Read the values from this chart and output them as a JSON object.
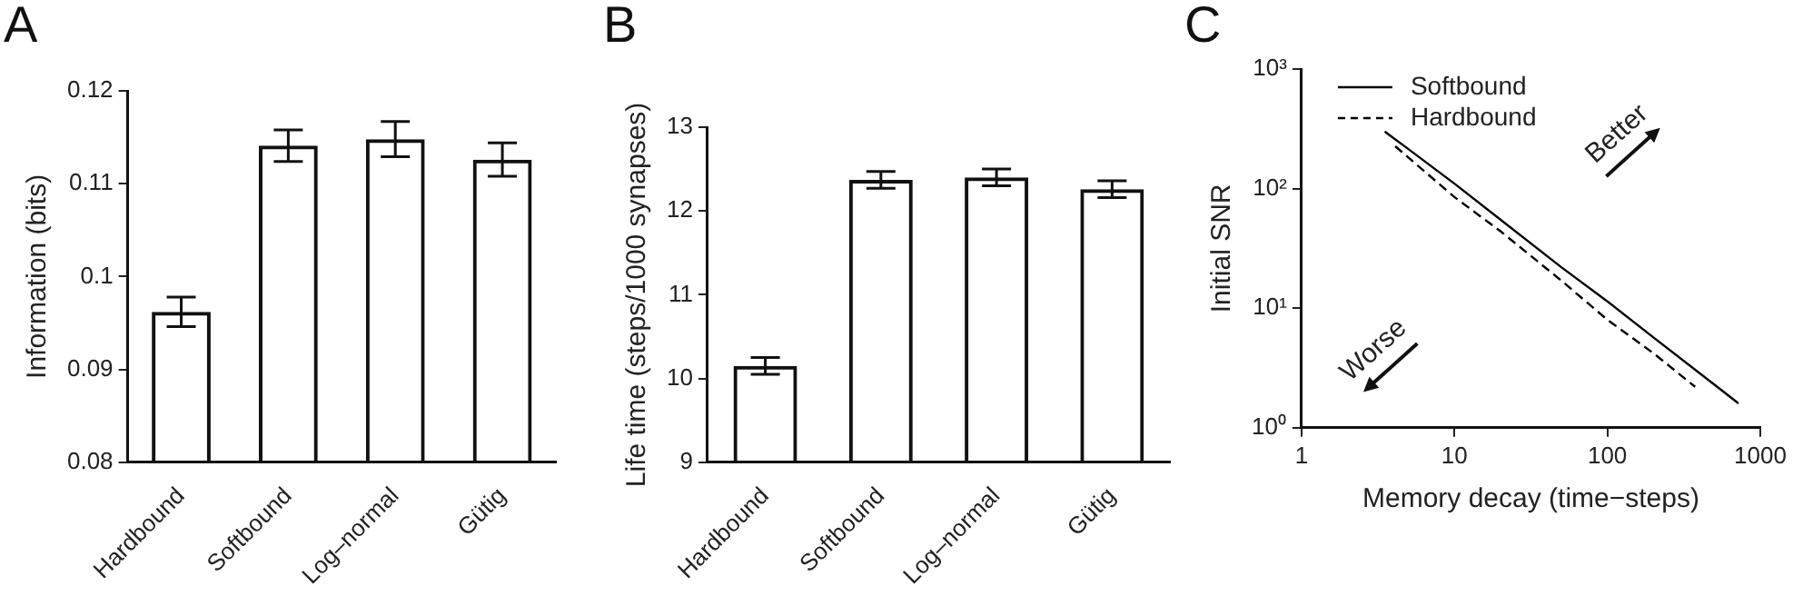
{
  "chart_data": [
    {
      "type": "bar",
      "title": "A",
      "ylabel": "Information (bits)",
      "categories": [
        "Hardbound",
        "Softbound",
        "Log–normal",
        "Gütig"
      ],
      "values": [
        0.0962,
        0.1141,
        0.1148,
        0.1126
      ],
      "errors": [
        0.0016,
        0.0017,
        0.0019,
        0.0018
      ],
      "color": "#111111",
      "ylim": [
        0.08,
        0.12
      ],
      "yticks": [
        0.08,
        0.09,
        0.1,
        0.11,
        0.12
      ]
    },
    {
      "type": "bar",
      "title": "B",
      "ylabel": "Life time (steps/1000 synapses)",
      "categories": [
        "Hardbound",
        "Softbound",
        "Log–normal",
        "Gütig"
      ],
      "values": [
        10.15,
        12.37,
        12.4,
        12.26
      ],
      "errors": [
        0.1,
        0.1,
        0.1,
        0.1
      ],
      "color": "#111111",
      "ylim": [
        9,
        13
      ],
      "yticks": [
        9,
        10,
        11,
        12,
        13
      ]
    },
    {
      "type": "line",
      "title": "C",
      "xlabel": "Memory decay (time−steps)",
      "ylabel": "Initial SNR",
      "log": "xy",
      "xlim": [
        1,
        1000
      ],
      "ylim": [
        1,
        1000
      ],
      "xticks": [
        1,
        10,
        100,
        1000
      ],
      "yticks": [
        {
          "value": 1,
          "label": "10⁰"
        },
        {
          "value": 10,
          "label": "10¹"
        },
        {
          "value": 100,
          "label": "10²"
        },
        {
          "value": 1000,
          "label": "10³"
        }
      ],
      "legend": "top left",
      "annotations": [
        "Better",
        "Worse"
      ],
      "series": [
        {
          "name": "Softbound",
          "color": "#000000",
          "line_style": "solid",
          "x": [
            3.5,
            5,
            10,
            20,
            50,
            100,
            200,
            500,
            720
          ],
          "values": [
            300,
            214,
            110,
            55,
            22,
            11.4,
            5.7,
            2.3,
            1.6
          ]
        },
        {
          "name": "Hardbound",
          "color": "#000000",
          "line_style": "dashed",
          "x": [
            4.1,
            10,
            20,
            50,
            100,
            200,
            375
          ],
          "values": [
            226,
            85,
            44,
            17,
            8,
            4.2,
            2.2
          ]
        }
      ]
    }
  ]
}
